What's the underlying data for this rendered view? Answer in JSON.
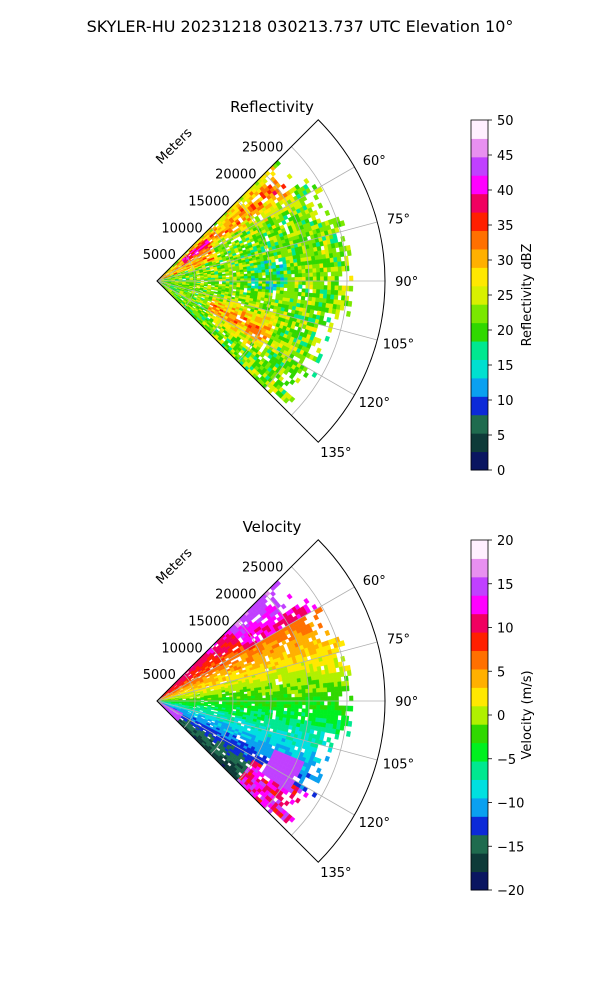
{
  "figure": {
    "suptitle": "SKYLER-HU  20231218  030213.737 UTC Elevation 10°"
  },
  "chart_data": [
    {
      "type": "heatmap",
      "title": "Reflectivity",
      "projection": "polar sector",
      "range_axis_label": "Meters",
      "range_ticks": [
        5000,
        10000,
        15000,
        20000,
        25000
      ],
      "range_tick_labels": [
        "5000",
        "10000",
        "15000",
        "20000",
        "25000"
      ],
      "range_max": 30000,
      "azimuth_range_deg": [
        45,
        135
      ],
      "azimuth_ticks_deg": [
        60,
        75,
        90,
        105,
        120,
        135
      ],
      "azimuth_tick_labels": [
        "60°",
        "75°",
        "90°",
        "105°",
        "120°",
        "135°"
      ],
      "grid": true,
      "colorbar": {
        "label": "Reflectivity dBZ",
        "vmin": 0,
        "vmax": 50,
        "ticks": [
          0,
          5,
          10,
          15,
          20,
          25,
          30,
          35,
          40,
          45,
          50
        ],
        "tick_labels": [
          "0",
          "5",
          "10",
          "15",
          "20",
          "25",
          "30",
          "35",
          "40",
          "45",
          "50"
        ],
        "colors": [
          "#0a1560",
          "#0e3a38",
          "#1f6b4e",
          "#0c2ad8",
          "#0aa0f0",
          "#00e0d0",
          "#00e890",
          "#30d800",
          "#7ae800",
          "#d8f000",
          "#ffe800",
          "#ffb000",
          "#ff7000",
          "#ff2000",
          "#f00060",
          "#ff00ff",
          "#c040ff",
          "#e890f0",
          "#fff0ff"
        ]
      }
    },
    {
      "type": "heatmap",
      "title": "Velocity",
      "projection": "polar sector",
      "range_axis_label": "Meters",
      "range_ticks": [
        5000,
        10000,
        15000,
        20000,
        25000
      ],
      "range_tick_labels": [
        "5000",
        "10000",
        "15000",
        "20000",
        "25000"
      ],
      "range_max": 30000,
      "azimuth_range_deg": [
        45,
        135
      ],
      "azimuth_ticks_deg": [
        60,
        75,
        90,
        105,
        120,
        135
      ],
      "azimuth_tick_labels": [
        "60°",
        "75°",
        "90°",
        "105°",
        "120°",
        "135°"
      ],
      "grid": true,
      "colorbar": {
        "label": "Velocity (m/s)",
        "vmin": -20,
        "vmax": 20,
        "ticks": [
          -20,
          -15,
          -10,
          -5,
          0,
          5,
          10,
          15,
          20
        ],
        "tick_labels": [
          "−20",
          "−15",
          "−10",
          "−5",
          "0",
          "5",
          "10",
          "15",
          "20"
        ],
        "colors": [
          "#0a1560",
          "#0e3a38",
          "#1f6b4e",
          "#0c2ad8",
          "#0aa0f0",
          "#00e0e0",
          "#00e890",
          "#00f020",
          "#30d800",
          "#b0f000",
          "#ffe800",
          "#ffb000",
          "#ff7000",
          "#ff2000",
          "#f00060",
          "#ff00ff",
          "#c040ff",
          "#e890f0",
          "#fff0ff"
        ]
      }
    }
  ]
}
